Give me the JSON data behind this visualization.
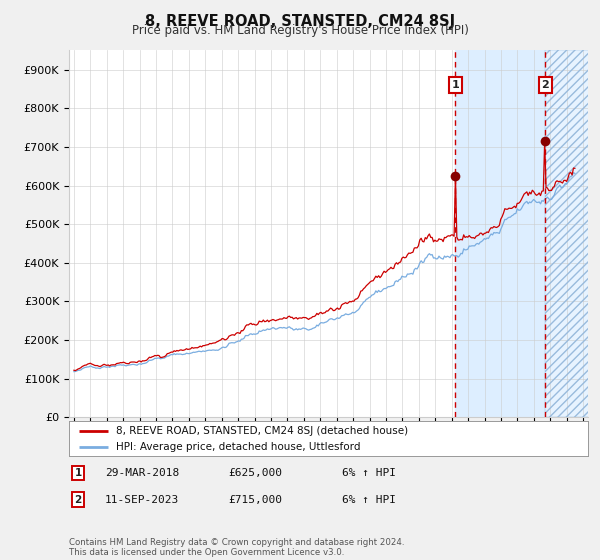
{
  "title": "8, REEVE ROAD, STANSTED, CM24 8SJ",
  "subtitle": "Price paid vs. HM Land Registry's House Price Index (HPI)",
  "ylabel_ticks": [
    "£0",
    "£100K",
    "£200K",
    "£300K",
    "£400K",
    "£500K",
    "£600K",
    "£700K",
    "£800K",
    "£900K"
  ],
  "ytick_values": [
    0,
    100000,
    200000,
    300000,
    400000,
    500000,
    600000,
    700000,
    800000,
    900000
  ],
  "ylim": [
    0,
    950000
  ],
  "xlim_start": 1994.7,
  "xlim_end": 2026.3,
  "red_line_color": "#cc0000",
  "blue_line_color": "#7aade0",
  "shade_color": "#ddeeff",
  "dashed_color": "#cc0000",
  "marker1_x": 2018.23,
  "marker1_y": 625000,
  "marker2_x": 2023.7,
  "marker2_y": 715000,
  "annotation1_date": "29-MAR-2018",
  "annotation1_price": "£625,000",
  "annotation1_hpi": "6% ↑ HPI",
  "annotation2_date": "11-SEP-2023",
  "annotation2_price": "£715,000",
  "annotation2_hpi": "6% ↑ HPI",
  "legend_label1": "8, REEVE ROAD, STANSTED, CM24 8SJ (detached house)",
  "legend_label2": "HPI: Average price, detached house, Uttlesford",
  "footer_text": "Contains HM Land Registry data © Crown copyright and database right 2024.\nThis data is licensed under the Open Government Licence v3.0.",
  "background_color": "#f0f0f0",
  "plot_bg_color": "#ffffff",
  "grid_color": "#cccccc"
}
